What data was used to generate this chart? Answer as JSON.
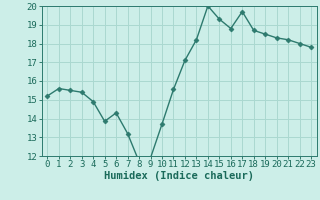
{
  "x": [
    0,
    1,
    2,
    3,
    4,
    5,
    6,
    7,
    8,
    9,
    10,
    11,
    12,
    13,
    14,
    15,
    16,
    17,
    18,
    19,
    20,
    21,
    22,
    23
  ],
  "y": [
    15.2,
    15.6,
    15.5,
    15.4,
    14.9,
    13.85,
    14.3,
    13.2,
    11.7,
    11.9,
    13.7,
    15.55,
    17.1,
    18.2,
    20.0,
    19.3,
    18.8,
    19.7,
    18.7,
    18.5,
    18.3,
    18.2,
    18.0,
    17.8
  ],
  "line_color": "#2d7a6e",
  "marker": "D",
  "markersize": 2.5,
  "linewidth": 1.0,
  "bg_color": "#cceee8",
  "grid_color": "#aad8d0",
  "xlabel": "Humidex (Indice chaleur)",
  "xlabel_fontsize": 7.5,
  "ylim": [
    12,
    20
  ],
  "xlim": [
    -0.5,
    23.5
  ],
  "yticks": [
    12,
    13,
    14,
    15,
    16,
    17,
    18,
    19,
    20
  ],
  "xticks": [
    0,
    1,
    2,
    3,
    4,
    5,
    6,
    7,
    8,
    9,
    10,
    11,
    12,
    13,
    14,
    15,
    16,
    17,
    18,
    19,
    20,
    21,
    22,
    23
  ],
  "tick_color": "#1a6a5a",
  "tick_labelsize": 6.5,
  "spine_color": "#2d7a6e"
}
